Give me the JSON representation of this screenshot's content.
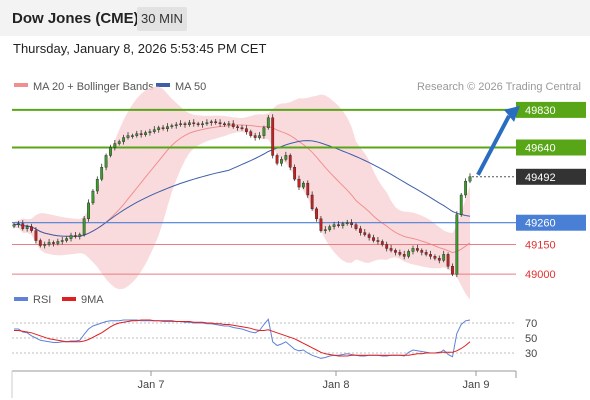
{
  "header": {
    "title": "Dow Jones (CME)",
    "timeframe": "30 MIN",
    "datetime": "Thursday, January 8, 2026 5:53:45 PM CET"
  },
  "legend": {
    "ma20": "MA 20 + Bollinger Bands",
    "ma50": "MA 50",
    "credit": "Research © 2026 Trading Central",
    "rsi": "RSI",
    "rsi_ma": "9MA"
  },
  "colors": {
    "resistance": "#58a618",
    "current": "#333333",
    "pivot": "#4a7fd6",
    "support": "#e87d84",
    "bollinger": "#f9d5d7",
    "ma20": "#f08f90",
    "ma50": "#3d5fa8",
    "rsi": "#5f82d8",
    "rsi_ma": "#e02020",
    "arrow": "#2a6cc0"
  },
  "chart_data": [
    {
      "type": "candlestick",
      "series": [
        {
          "name": "MA 20 + Bollinger Bands"
        },
        {
          "name": "MA 50"
        }
      ],
      "levels": [
        {
          "label": "49830",
          "kind": "resistance"
        },
        {
          "label": "49640",
          "kind": "resistance"
        },
        {
          "label": "49492",
          "kind": "current"
        },
        {
          "label": "49260",
          "kind": "pivot"
        },
        {
          "label": "49150",
          "kind": "support"
        },
        {
          "label": "49000",
          "kind": "support"
        }
      ],
      "x_ticks": [
        "Jan 7",
        "Jan 8",
        "Jan 9"
      ],
      "ylim": [
        48920,
        49880
      ],
      "close": [
        49250,
        49255,
        49230,
        49240,
        49220,
        49170,
        49145,
        49150,
        49160,
        49155,
        49165,
        49170,
        49180,
        49195,
        49190,
        49200,
        49280,
        49360,
        49420,
        49480,
        49540,
        49600,
        49640,
        49660,
        49670,
        49690,
        49700,
        49700,
        49710,
        49705,
        49715,
        49720,
        49730,
        49740,
        49735,
        49745,
        49750,
        49755,
        49760,
        49755,
        49765,
        49760,
        49755,
        49760,
        49765,
        49770,
        49765,
        49760,
        49755,
        49760,
        49745,
        49740,
        49735,
        49720,
        49700,
        49690,
        49700,
        49740,
        49790,
        49600,
        49560,
        49580,
        49600,
        49540,
        49480,
        49440,
        49460,
        49400,
        49330,
        49280,
        49220,
        49225,
        49240,
        49250,
        49245,
        49255,
        49260,
        49250,
        49230,
        49210,
        49200,
        49185,
        49170,
        49165,
        49150,
        49130,
        49120,
        49110,
        49100,
        49090,
        49115,
        49130,
        49120,
        49110,
        49100,
        49090,
        49080,
        49070,
        49100,
        49040,
        49000,
        49300,
        49400,
        49470,
        49492
      ]
    },
    {
      "type": "line",
      "title": "RSI",
      "series": [
        {
          "name": "RSI"
        },
        {
          "name": "9MA"
        }
      ],
      "y_ticks": [
        70,
        50,
        30
      ],
      "ylim": [
        10,
        82
      ],
      "rsi": [
        62,
        62,
        58,
        57,
        53,
        50,
        47,
        46,
        45,
        44,
        44,
        45,
        45,
        46,
        46,
        47,
        55,
        62,
        66,
        68,
        70,
        72,
        73,
        73,
        73,
        74,
        74,
        74,
        74,
        73,
        73,
        73,
        73,
        73,
        72,
        72,
        72,
        72,
        72,
        71,
        71,
        70,
        70,
        70,
        69,
        69,
        68,
        67,
        66,
        66,
        64,
        63,
        62,
        60,
        58,
        57,
        60,
        68,
        75,
        45,
        40,
        42,
        45,
        40,
        35,
        33,
        34,
        30,
        27,
        25,
        23,
        24,
        26,
        27,
        27,
        28,
        29,
        28,
        27,
        26,
        26,
        27,
        27,
        27,
        26,
        26,
        27,
        27,
        27,
        26,
        31,
        34,
        33,
        32,
        31,
        30,
        30,
        30,
        34,
        28,
        25,
        56,
        68,
        73,
        74
      ],
      "rsi_ma": [
        60,
        60,
        59,
        58,
        57,
        55,
        53,
        51,
        49,
        48,
        47,
        46,
        45,
        45,
        45,
        45,
        46,
        48,
        51,
        54,
        57,
        61,
        65,
        68,
        70,
        71,
        72,
        73,
        73,
        74,
        74,
        74,
        73,
        73,
        73,
        73,
        73,
        72,
        72,
        72,
        72,
        71,
        71,
        71,
        70,
        70,
        69,
        69,
        68,
        68,
        67,
        66,
        65,
        64,
        63,
        61,
        60,
        60,
        61,
        59,
        57,
        55,
        53,
        51,
        49,
        46,
        43,
        40,
        37,
        34,
        31,
        29,
        28,
        27,
        26,
        26,
        26,
        27,
        27,
        27,
        27,
        27,
        27,
        27,
        27,
        27,
        27,
        27,
        27,
        27,
        27,
        28,
        29,
        29,
        30,
        30,
        30,
        31,
        31,
        31,
        31,
        33,
        36,
        40,
        45
      ]
    }
  ]
}
